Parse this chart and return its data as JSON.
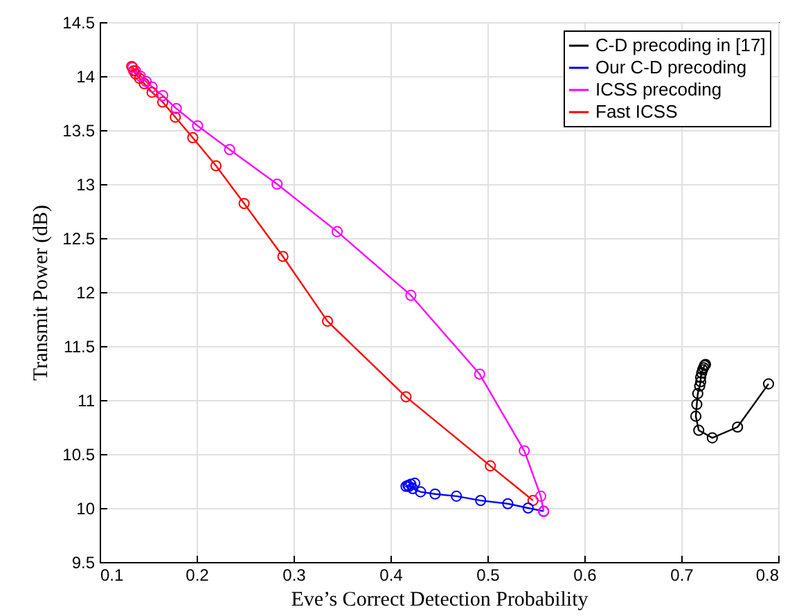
{
  "chart_data": {
    "type": "line",
    "xlabel": "Eve’s Correct Detection Probability",
    "ylabel": "Transmit Power (dB)",
    "xlim": [
      0.1,
      0.8
    ],
    "xticks": [
      0.1,
      0.2,
      0.3,
      0.4,
      0.5,
      0.6,
      0.7,
      0.8
    ],
    "ylim": [
      9.5,
      14.5
    ],
    "yticks": [
      9.5,
      10,
      10.5,
      11,
      11.5,
      12,
      12.5,
      13,
      13.5,
      14,
      14.5
    ],
    "grid": true,
    "legend": "top right",
    "marker": "circle",
    "line_style": "solid",
    "series": [
      {
        "name": "C-D precoding in [17]",
        "color": "#000000",
        "x": [
          0.79,
          0.758,
          0.732,
          0.718,
          0.715,
          0.716,
          0.717,
          0.719,
          0.72,
          0.72,
          0.721,
          0.722,
          0.723,
          0.724,
          0.725
        ],
        "values": [
          11.15,
          10.75,
          10.65,
          10.72,
          10.85,
          10.96,
          11.06,
          11.13,
          11.17,
          11.21,
          11.25,
          11.28,
          11.3,
          11.32,
          11.33
        ]
      },
      {
        "name": "Our C-D precoding",
        "color": "#0000ff",
        "x": [
          0.558,
          0.542,
          0.521,
          0.493,
          0.468,
          0.446,
          0.431,
          0.423,
          0.419,
          0.416,
          0.418,
          0.421,
          0.425
        ],
        "values": [
          9.97,
          10.0,
          10.04,
          10.07,
          10.11,
          10.13,
          10.15,
          10.18,
          10.2,
          10.2,
          10.21,
          10.22,
          10.23
        ]
      },
      {
        "name": "ICSS precoding",
        "color": "#ff00ff",
        "x": [
          0.558,
          0.555,
          0.538,
          0.492,
          0.421,
          0.345,
          0.283,
          0.234,
          0.201,
          0.179,
          0.165,
          0.154,
          0.148,
          0.142,
          0.137,
          0.134
        ],
        "values": [
          9.97,
          10.11,
          10.53,
          11.24,
          11.97,
          12.56,
          13.0,
          13.32,
          13.54,
          13.7,
          13.82,
          13.9,
          13.95,
          14.0,
          14.05,
          14.08
        ]
      },
      {
        "name": "Fast ICSS",
        "color": "#ff0000",
        "x": [
          0.547,
          0.503,
          0.416,
          0.335,
          0.289,
          0.249,
          0.22,
          0.196,
          0.178,
          0.165,
          0.154,
          0.146,
          0.141,
          0.137,
          0.135,
          0.133
        ],
        "values": [
          10.07,
          10.39,
          11.03,
          11.73,
          12.33,
          12.82,
          13.17,
          13.43,
          13.62,
          13.76,
          13.85,
          13.93,
          13.98,
          14.02,
          14.05,
          14.09
        ]
      }
    ]
  }
}
